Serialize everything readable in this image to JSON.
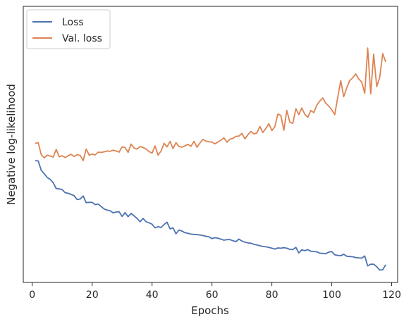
{
  "chart_data": {
    "type": "line",
    "title": "",
    "xlabel": "Epochs",
    "ylabel": "Negative log-likelihood",
    "xlim": [
      -3,
      122
    ],
    "ylim": [
      0,
      100
    ],
    "xticks": [
      0,
      20,
      40,
      60,
      80,
      100,
      120
    ],
    "xtick_labels": [
      "0",
      "20",
      "40",
      "60",
      "80",
      "100",
      "120"
    ],
    "yticks_shown": false,
    "grid": false,
    "legend_position": "top-left",
    "series": [
      {
        "name": "Loss",
        "color": "#4c72b0",
        "x": [
          1,
          2,
          3,
          4,
          5,
          6,
          7,
          8,
          9,
          10,
          11,
          12,
          13,
          14,
          15,
          16,
          17,
          18,
          19,
          20,
          21,
          22,
          23,
          24,
          25,
          26,
          27,
          28,
          29,
          30,
          31,
          32,
          33,
          34,
          35,
          36,
          37,
          38,
          39,
          40,
          41,
          42,
          43,
          44,
          45,
          46,
          47,
          48,
          49,
          50,
          51,
          52,
          53,
          54,
          55,
          56,
          57,
          58,
          59,
          60,
          61,
          62,
          63,
          64,
          65,
          66,
          67,
          68,
          69,
          70,
          71,
          72,
          73,
          74,
          75,
          76,
          77,
          78,
          79,
          80,
          81,
          82,
          83,
          84,
          85,
          86,
          87,
          88,
          89,
          90,
          91,
          92,
          93,
          94,
          95,
          96,
          97,
          98,
          99,
          100,
          101,
          102,
          103,
          104,
          105,
          106,
          107,
          108,
          109,
          110,
          111,
          112,
          113,
          114,
          115,
          116,
          117,
          118
        ],
        "values": [
          44.1,
          44.0,
          40.6,
          39.4,
          38.0,
          37.3,
          36.1,
          34.0,
          33.9,
          33.6,
          32.5,
          32.3,
          31.9,
          31.4,
          30.0,
          30.2,
          31.3,
          28.9,
          29.0,
          29.0,
          28.2,
          28.4,
          27.5,
          26.6,
          26.2,
          26.0,
          25.2,
          25.5,
          25.6,
          23.9,
          25.3,
          23.8,
          25.0,
          24.1,
          23.2,
          22.0,
          23.2,
          22.0,
          21.6,
          21.1,
          19.8,
          20.2,
          19.9,
          21.0,
          21.8,
          19.4,
          19.8,
          17.6,
          19.0,
          18.6,
          18.0,
          17.8,
          17.5,
          17.4,
          17.3,
          17.2,
          17.0,
          16.7,
          16.5,
          15.9,
          16.2,
          16.0,
          15.7,
          15.3,
          15.5,
          15.5,
          15.1,
          14.8,
          15.7,
          15.0,
          14.6,
          14.3,
          14.2,
          13.8,
          13.6,
          13.3,
          13.0,
          12.9,
          12.7,
          12.4,
          12.1,
          12.5,
          12.4,
          12.6,
          12.4,
          12.0,
          11.9,
          12.7,
          10.7,
          11.8,
          11.5,
          11.9,
          11.3,
          11.2,
          11.1,
          10.6,
          10.5,
          10.4,
          11.0,
          11.2,
          10.0,
          9.8,
          9.7,
          10.2,
          9.5,
          9.4,
          9.3,
          9.0,
          8.9,
          8.8,
          9.6,
          6.0,
          6.6,
          6.6,
          5.7,
          4.5,
          4.6,
          6.4
        ]
      },
      {
        "name": "Val. loss",
        "color": "#dd8452",
        "x": [
          1,
          2,
          3,
          4,
          5,
          6,
          7,
          8,
          9,
          10,
          11,
          12,
          13,
          14,
          15,
          16,
          17,
          18,
          19,
          20,
          21,
          22,
          23,
          24,
          25,
          26,
          27,
          28,
          29,
          30,
          31,
          32,
          33,
          34,
          35,
          36,
          37,
          38,
          39,
          40,
          41,
          42,
          43,
          44,
          45,
          46,
          47,
          48,
          49,
          50,
          51,
          52,
          53,
          54,
          55,
          56,
          57,
          58,
          59,
          60,
          61,
          62,
          63,
          64,
          65,
          66,
          67,
          68,
          69,
          70,
          71,
          72,
          73,
          74,
          75,
          76,
          77,
          78,
          79,
          80,
          81,
          82,
          83,
          84,
          85,
          86,
          87,
          88,
          89,
          90,
          91,
          92,
          93,
          94,
          95,
          96,
          97,
          98,
          99,
          100,
          101,
          102,
          103,
          104,
          105,
          106,
          107,
          108,
          109,
          110,
          111,
          112,
          113,
          114,
          115,
          116,
          117,
          118
        ],
        "values": [
          50.4,
          50.6,
          46.3,
          45.1,
          46.1,
          45.8,
          45.4,
          48.2,
          45.5,
          45.9,
          45.2,
          45.9,
          46.4,
          45.6,
          46.3,
          46.0,
          44.1,
          48.3,
          46.1,
          46.5,
          46.2,
          47.2,
          47.1,
          47.3,
          47.6,
          47.5,
          47.9,
          47.6,
          47.2,
          49.1,
          48.9,
          47.1,
          50.1,
          48.7,
          48.3,
          49.2,
          48.9,
          48.3,
          47.4,
          46.8,
          49.5,
          46.1,
          47.6,
          50.4,
          49.1,
          51.1,
          48.5,
          50.6,
          49.2,
          49.0,
          49.5,
          50.0,
          49.3,
          51.1,
          49.0,
          50.5,
          51.8,
          51.2,
          50.9,
          50.9,
          50.2,
          50.9,
          51.5,
          52.4,
          50.8,
          51.9,
          52.2,
          52.9,
          53.0,
          54.0,
          52.0,
          53.5,
          54.7,
          53.8,
          54.1,
          56.5,
          54.3,
          55.8,
          57.5,
          55.0,
          56.4,
          61.0,
          60.5,
          55.1,
          62.3,
          58.0,
          57.6,
          62.9,
          60.8,
          63.2,
          60.9,
          59.8,
          62.3,
          61.5,
          64.2,
          65.7,
          66.8,
          64.9,
          63.9,
          62.5,
          60.8,
          67.0,
          73.1,
          67.3,
          70.5,
          73.1,
          74.1,
          75.5,
          73.7,
          72.6,
          68.5,
          84.9,
          68.3,
          82.7,
          70.9,
          74.2,
          82.9,
          79.9
        ]
      }
    ]
  }
}
